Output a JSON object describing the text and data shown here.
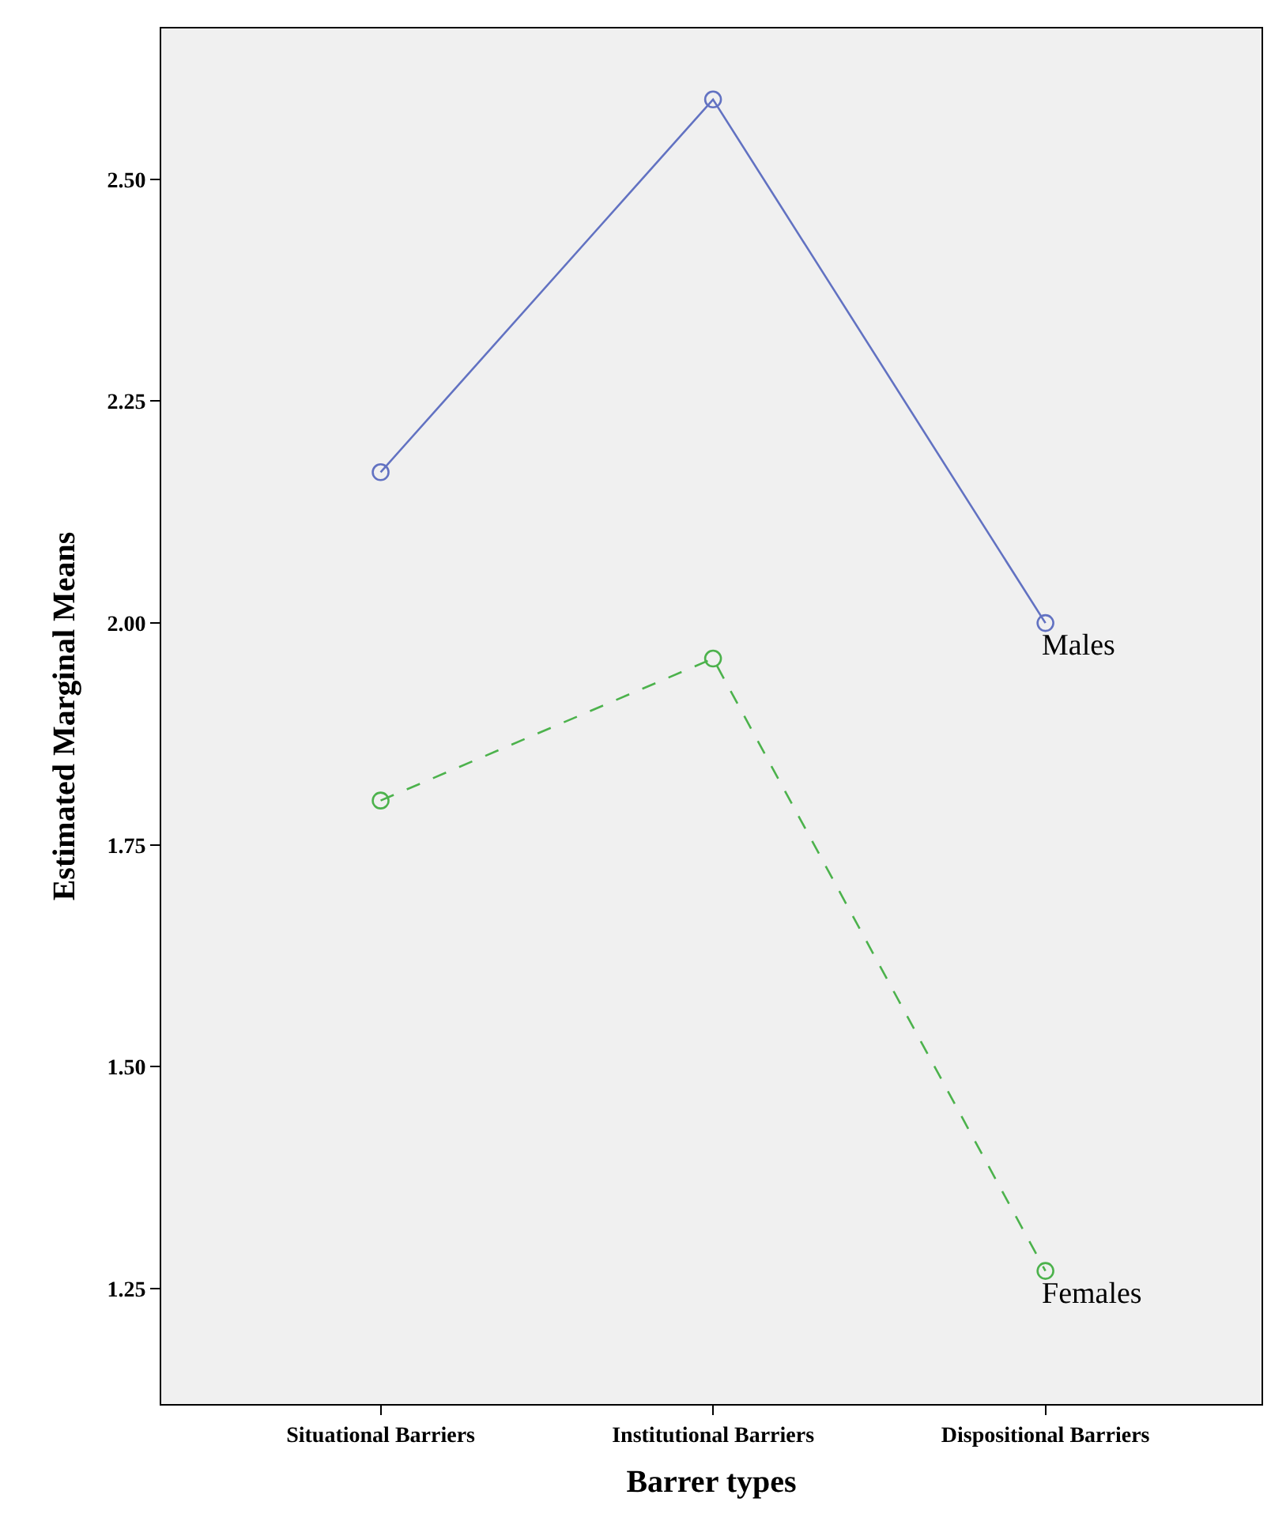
{
  "chart_data": {
    "type": "line",
    "xlabel": "Barrer types",
    "ylabel": "Estimated Marginal Means",
    "categories": [
      "Situational Barriers",
      "Institutional Barriers",
      "Dispositional Barriers"
    ],
    "series": [
      {
        "name": "Males",
        "color": "#6272c2",
        "values": [
          2.17,
          2.59,
          2.0
        ],
        "line_style": "solid"
      },
      {
        "name": "Females",
        "color": "#4cb24c",
        "values": [
          1.8,
          1.96,
          1.27
        ],
        "line_style": "dashed"
      }
    ],
    "ylim": [
      1.12,
      2.67
    ],
    "yticks": [
      {
        "value": 1.25,
        "label": "1.25"
      },
      {
        "value": 1.5,
        "label": "1.50"
      },
      {
        "value": 1.75,
        "label": "1.75"
      },
      {
        "value": 2.0,
        "label": "2.00"
      },
      {
        "value": 2.25,
        "label": "2.25"
      },
      {
        "value": 2.5,
        "label": "2.50"
      }
    ],
    "marker": "circle",
    "grid": false,
    "legend": false
  }
}
